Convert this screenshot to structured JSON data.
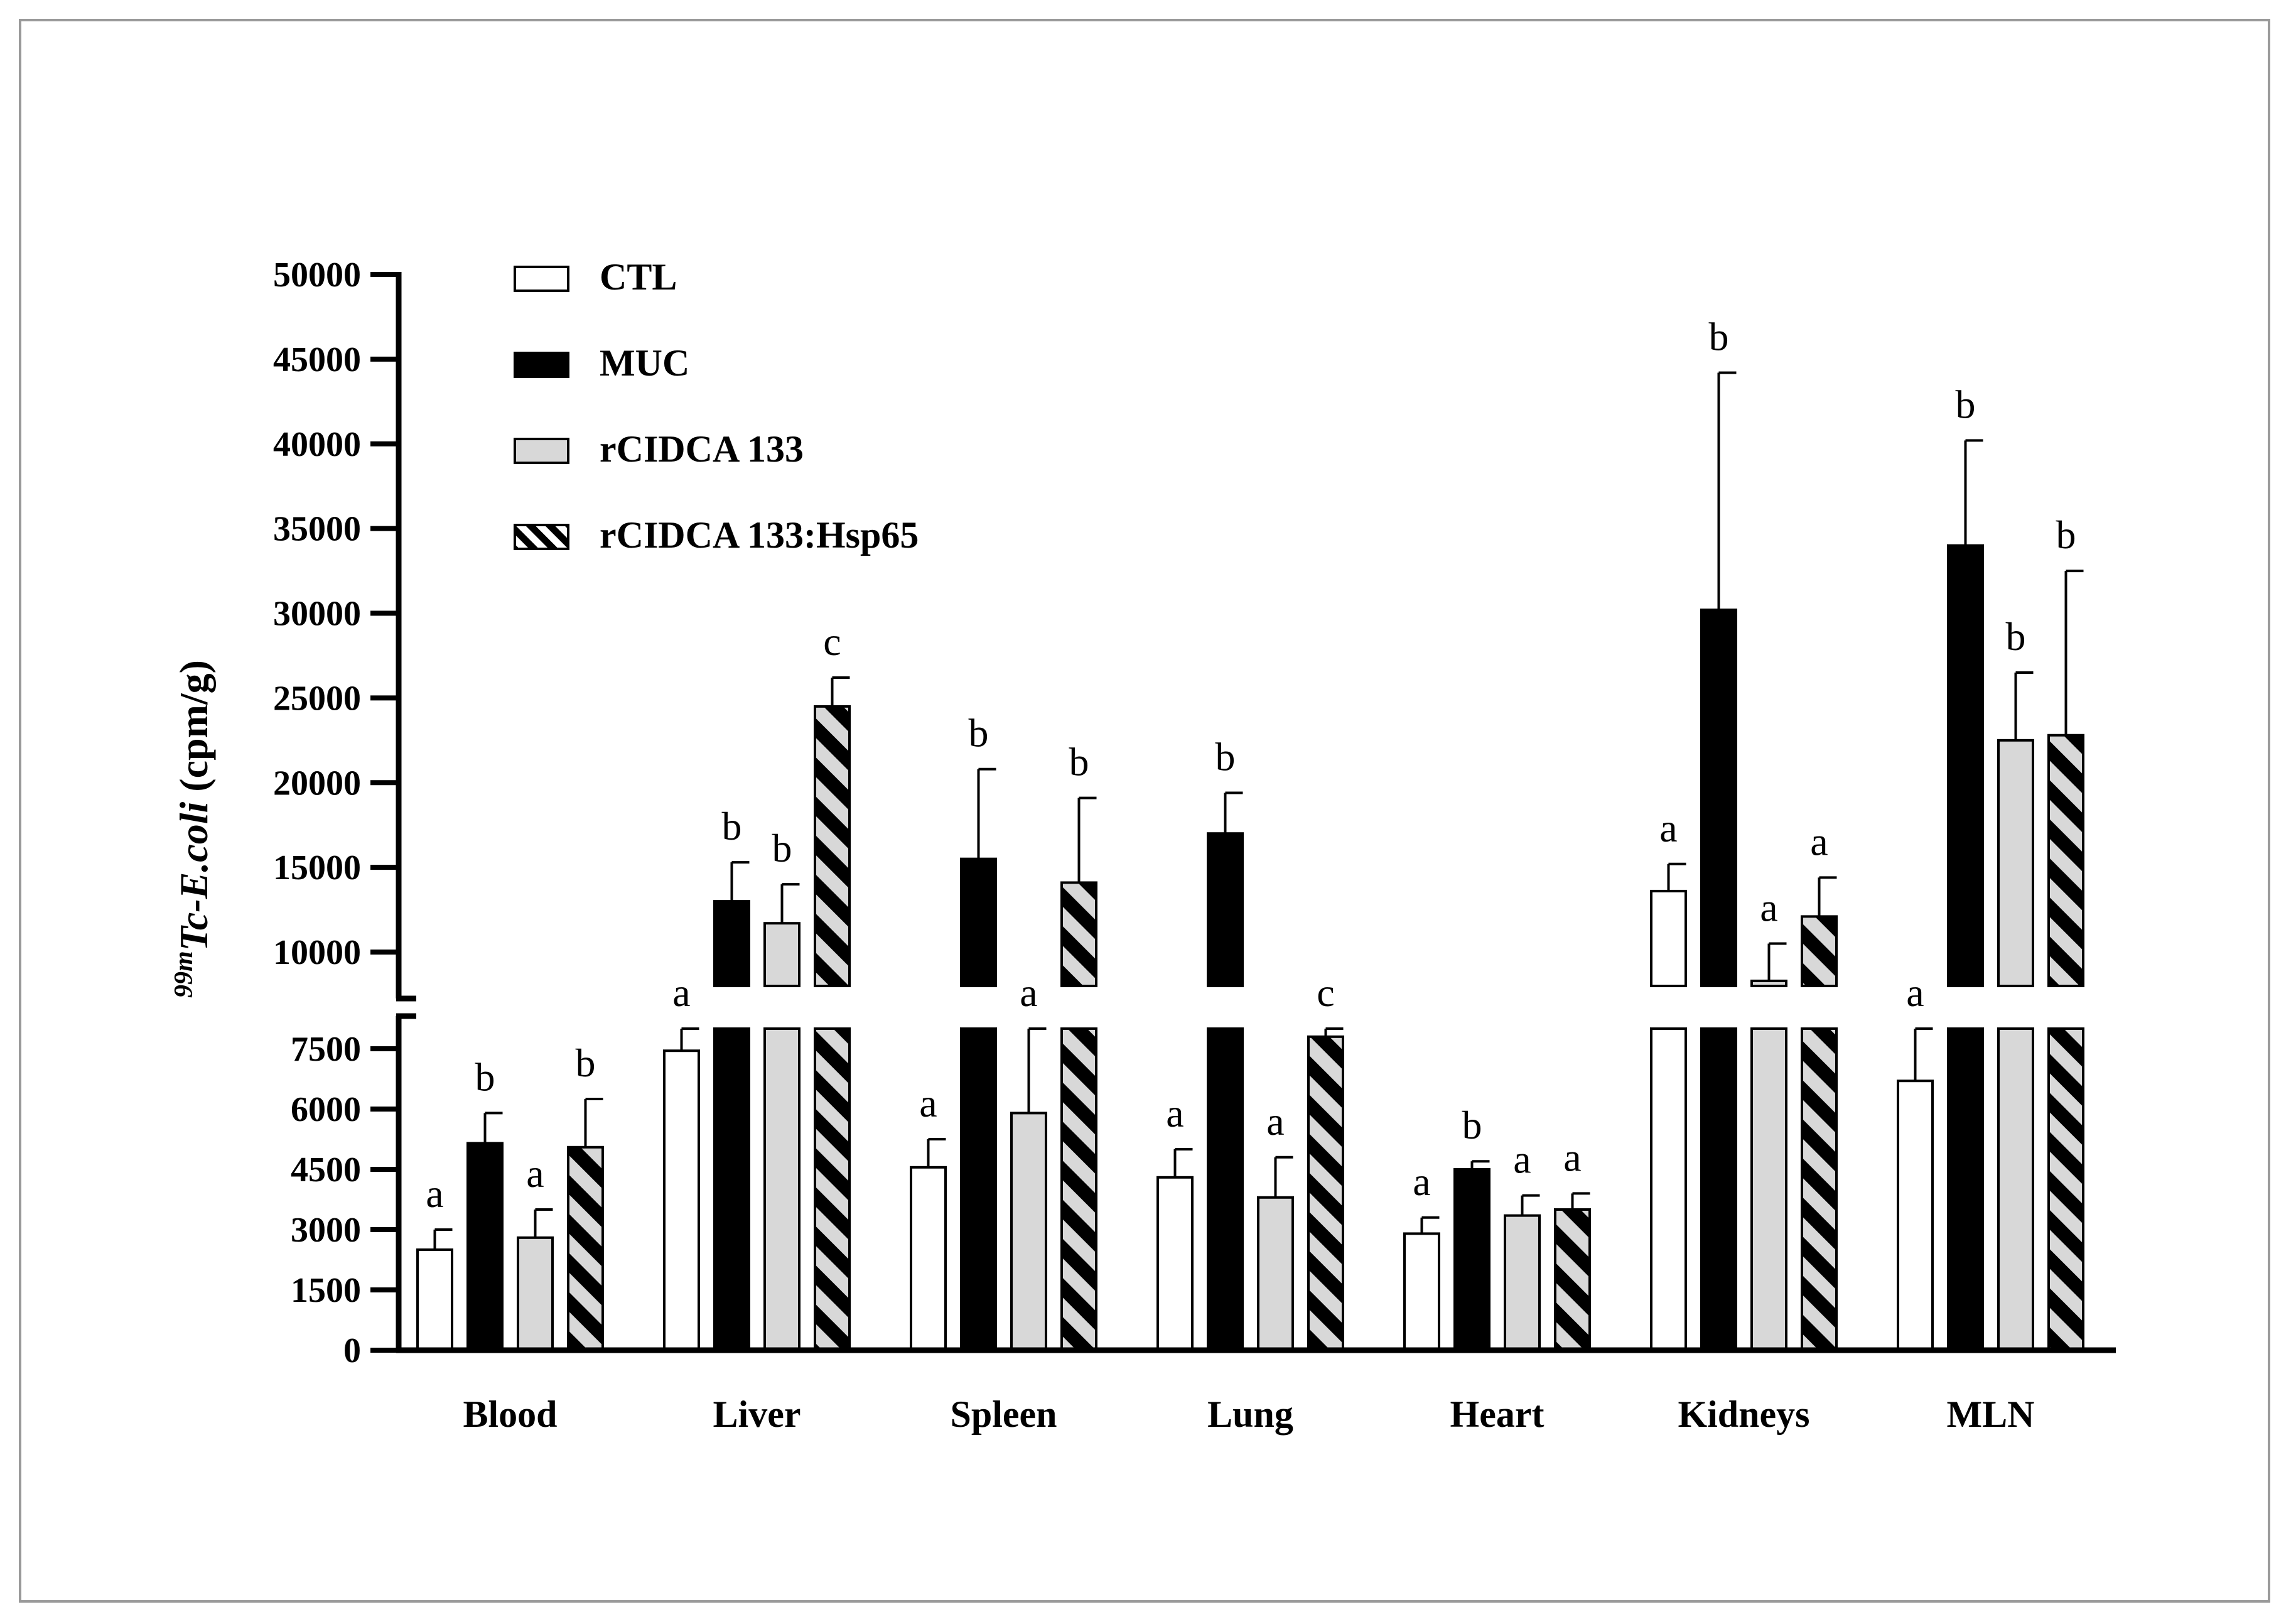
{
  "chart_data": {
    "type": "bar",
    "title": "",
    "xlabel": "",
    "ylabel": {
      "superscript": "99m",
      "italic": "Tc-E.coli",
      "unit": "(cpm/g)"
    },
    "axis_break": {
      "lower_max": 8000,
      "upper_min": 8000
    },
    "y_lower": {
      "range": [
        0,
        8000
      ],
      "ticks": [
        0,
        1500,
        3000,
        4500,
        6000,
        7500
      ],
      "tick_labels": [
        "0",
        "1500",
        "3000",
        "4500",
        "6000",
        "7500"
      ]
    },
    "y_upper": {
      "range": [
        8000,
        50000
      ],
      "ticks": [
        10000,
        15000,
        20000,
        25000,
        30000,
        35000,
        40000,
        45000,
        50000
      ],
      "tick_labels": [
        "10000",
        "15000",
        "20000",
        "25000",
        "30000",
        "35000",
        "40000",
        "45000",
        "50000"
      ]
    },
    "categories": [
      "Blood",
      "Liver",
      "Spleen",
      "Lung",
      "Heart",
      "Kidneys",
      "MLN"
    ],
    "legend": {
      "position": "top-left"
    },
    "series": [
      {
        "name": "CTL",
        "fill": "white",
        "values": [
          2500,
          7450,
          4550,
          4300,
          2900,
          13600,
          6700
        ],
        "errors": [
          500,
          1750,
          700,
          700,
          400,
          1600,
          1300
        ],
        "letters": [
          "a",
          "a",
          "a",
          "a",
          "a",
          "a",
          "a"
        ]
      },
      {
        "name": "MUC",
        "fill": "black",
        "values": [
          5150,
          13000,
          15500,
          17000,
          4500,
          30200,
          34000
        ],
        "errors": [
          750,
          2300,
          5300,
          2400,
          200,
          14000,
          6200
        ],
        "letters": [
          "b",
          "b",
          "b",
          "b",
          "b",
          "b",
          "b"
        ]
      },
      {
        "name": "rCIDCA 133",
        "fill": "gray",
        "values": [
          2800,
          11700,
          5900,
          3800,
          3350,
          8300,
          22500
        ],
        "errors": [
          700,
          2300,
          2300,
          1000,
          500,
          2200,
          4000
        ],
        "letters": [
          "a",
          "b",
          "a",
          "a",
          "a",
          "a",
          "b"
        ]
      },
      {
        "name": "rCIDCA 133:Hsp65",
        "fill": "hatched",
        "values": [
          5050,
          24500,
          14100,
          7800,
          3500,
          12100,
          22800
        ],
        "errors": [
          1200,
          1700,
          5000,
          2200,
          400,
          2300,
          9700
        ],
        "letters": [
          "b",
          "c",
          "b",
          "c",
          "a",
          "a",
          "b"
        ]
      }
    ],
    "colors": {
      "bar_stroke": "#000000",
      "gray_fill": "#d8d8d8",
      "black_fill": "#000000",
      "white_fill": "#ffffff",
      "frame": "#9a9a9a"
    }
  }
}
